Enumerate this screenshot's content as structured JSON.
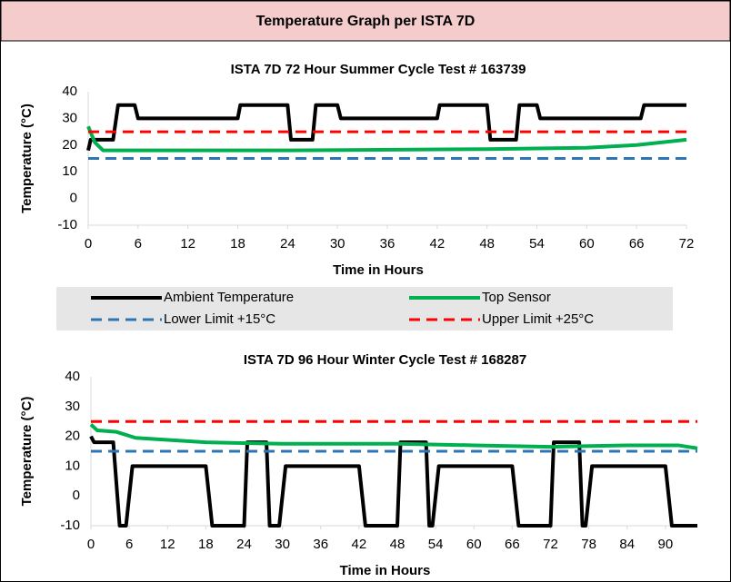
{
  "header": {
    "title": "Temperature Graph per ISTA 7D"
  },
  "chart_data": [
    {
      "type": "line",
      "title": "ISTA 7D 72 Hour Summer Cycle Test # 163739",
      "x_label": "Time in Hours",
      "y_label": "Temperature (°C)",
      "xlim": [
        0,
        72
      ],
      "xticks": [
        0,
        6,
        12,
        18,
        24,
        30,
        36,
        42,
        48,
        54,
        60,
        66,
        72
      ],
      "ylim": [
        -10,
        40
      ],
      "yticks": [
        -10,
        0,
        10,
        20,
        30,
        40
      ],
      "grid": false,
      "series": [
        {
          "name": "Ambient Temperature",
          "color": "#000000",
          "dash": false,
          "x": [
            0,
            0.3,
            0.6,
            3,
            3.6,
            5.6,
            6,
            18,
            18.3,
            24,
            24.4,
            27,
            27.4,
            30,
            30.4,
            42,
            42.3,
            48,
            48.4,
            51.5,
            51.9,
            54,
            54.4,
            66.5,
            66.9,
            72
          ],
          "values": [
            18,
            22,
            22,
            22,
            35,
            35,
            30,
            30,
            35,
            35,
            22,
            22,
            35,
            35,
            30,
            30,
            35,
            35,
            22,
            22,
            35,
            35,
            30,
            30,
            35,
            35
          ]
        },
        {
          "name": "Top Sensor",
          "color": "#00b050",
          "dash": false,
          "x": [
            0,
            0.8,
            1.8,
            6,
            24,
            48,
            60,
            66,
            72
          ],
          "values": [
            27,
            21,
            18,
            18,
            18,
            18.5,
            19,
            20,
            22
          ]
        },
        {
          "name": "Lower Limit +15°C",
          "color": "#2e75b6",
          "dash": true,
          "x": [
            0,
            72
          ],
          "values": [
            15,
            15
          ]
        },
        {
          "name": "Upper Limit +25°C",
          "color": "#ff0000",
          "dash": true,
          "x": [
            0,
            72
          ],
          "values": [
            25,
            25
          ]
        }
      ]
    },
    {
      "type": "line",
      "title": "ISTA 7D 96 Hour Winter Cycle Test # 168287",
      "x_label": "Time in Hours",
      "y_label": "Temperature (°C)",
      "xlim": [
        0,
        95
      ],
      "xticks": [
        0,
        6,
        12,
        18,
        24,
        30,
        36,
        42,
        48,
        54,
        60,
        66,
        72,
        78,
        84,
        90
      ],
      "ylim": [
        -10,
        40
      ],
      "yticks": [
        -10,
        0,
        10,
        20,
        30,
        40
      ],
      "grid": false,
      "series": [
        {
          "name": "Ambient Temperature",
          "color": "#000000",
          "dash": false,
          "x": [
            0,
            0.5,
            3.5,
            4.5,
            5.5,
            6.5,
            18,
            19,
            24,
            24.5,
            27.5,
            28,
            29.5,
            30.5,
            42,
            43,
            48,
            48.5,
            52.5,
            53,
            53.5,
            54.5,
            66,
            67,
            72,
            72.5,
            76.5,
            77,
            77.5,
            78.5,
            90,
            91,
            95
          ],
          "values": [
            20,
            18,
            18,
            -10,
            -10,
            10,
            10,
            -10,
            -10,
            18,
            18,
            -10,
            -10,
            10,
            10,
            -10,
            -10,
            18,
            18,
            -10,
            -10,
            10,
            10,
            -10,
            -10,
            18,
            18,
            -10,
            -10,
            10,
            10,
            -10,
            -10
          ]
        },
        {
          "name": "Top Sensor",
          "color": "#00b050",
          "dash": false,
          "x": [
            0,
            1,
            4,
            7,
            18,
            30,
            48,
            60,
            72,
            84,
            92,
            95
          ],
          "values": [
            24,
            22,
            21.5,
            19.5,
            18,
            17.5,
            17.5,
            17,
            16.5,
            17,
            17,
            16
          ]
        },
        {
          "name": "Lower Limit +15°C",
          "color": "#2e75b6",
          "dash": true,
          "x": [
            0,
            95
          ],
          "values": [
            15,
            15
          ]
        },
        {
          "name": "Upper Limit +25°C",
          "color": "#ff0000",
          "dash": true,
          "x": [
            0,
            95
          ],
          "values": [
            25,
            25
          ]
        }
      ]
    }
  ]
}
